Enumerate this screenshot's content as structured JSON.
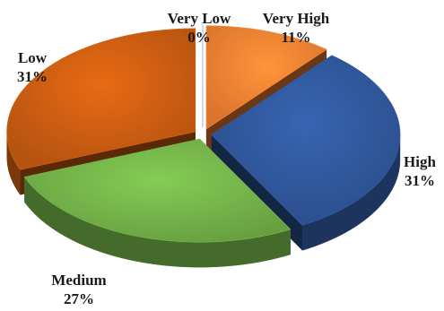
{
  "chart_data": {
    "type": "pie",
    "style": "3d-exploded",
    "title": "",
    "slices": [
      {
        "label": "Very Low",
        "value": 0,
        "value_label": "0%",
        "color": "#6b8fc8"
      },
      {
        "label": "Very High",
        "value": 11,
        "value_label": "11%",
        "color": "#ed7d31"
      },
      {
        "label": "High",
        "value": 31,
        "value_label": "31%",
        "color": "#2f5597"
      },
      {
        "label": "Medium",
        "value": 27,
        "value_label": "27%",
        "color": "#70ad47"
      },
      {
        "label": "Low",
        "value": 31,
        "value_label": "31%",
        "color": "#c55a11"
      }
    ],
    "legend": "none"
  }
}
